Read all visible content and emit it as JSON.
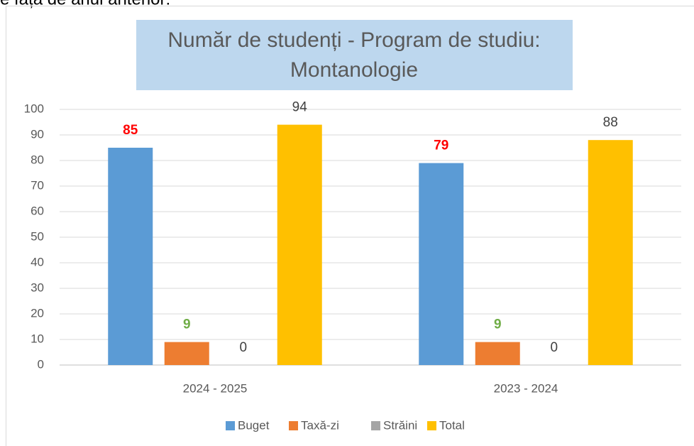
{
  "header_text": "re față de anul anterior:",
  "chart_data": {
    "type": "bar",
    "title_lines": [
      "Număr de studenți - Program de studiu:",
      "Montanologie"
    ],
    "categories": [
      "2024 - 2025",
      "2023 - 2024"
    ],
    "series": [
      {
        "name": "Buget",
        "color": "#5b9bd5",
        "label_color": "#ff0000",
        "label_bold": true,
        "values": [
          85,
          79
        ]
      },
      {
        "name": "Taxă-zi",
        "color": "#ed7d31",
        "label_color": "#70ad47",
        "label_bold": true,
        "values": [
          9,
          9
        ]
      },
      {
        "name": "Străini",
        "color": "#a5a5a5",
        "label_color": "#404040",
        "label_bold": false,
        "values": [
          0,
          0
        ]
      },
      {
        "name": "Total",
        "color": "#ffc000",
        "label_color": "#404040",
        "label_bold": false,
        "values": [
          94,
          88
        ]
      }
    ],
    "ylim": [
      0,
      100
    ],
    "yticks": [
      0,
      10,
      20,
      30,
      40,
      50,
      60,
      70,
      80,
      90,
      100
    ],
    "grid": true,
    "legend": "bottom"
  }
}
